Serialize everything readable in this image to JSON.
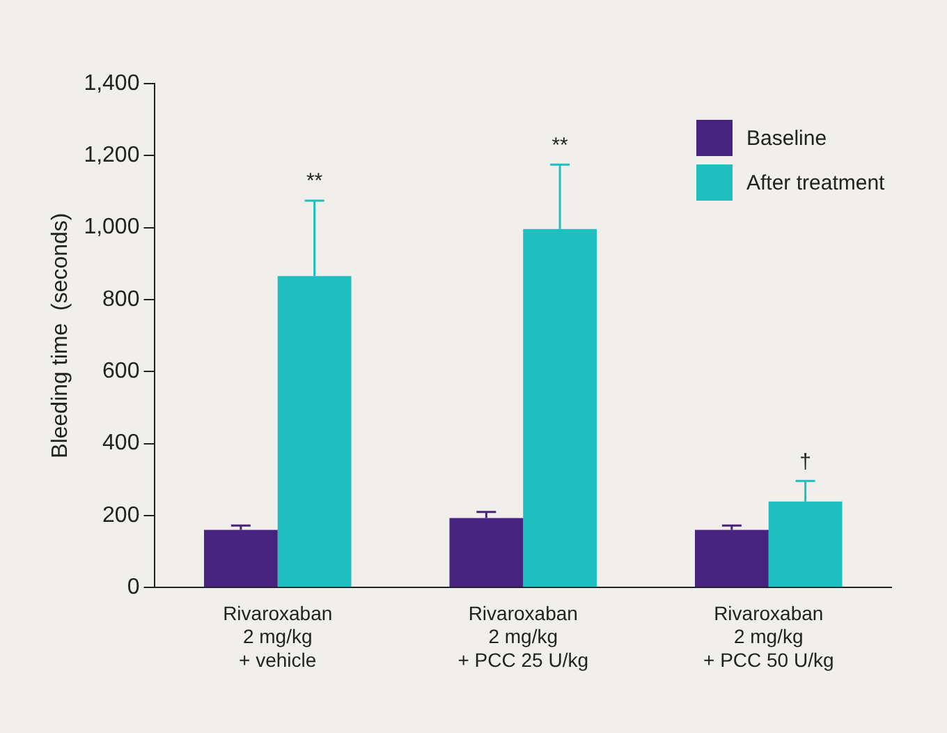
{
  "chart_data": {
    "type": "bar",
    "ylabel": "Bleeding time  (seconds)",
    "categories": [
      "Rivaroxaban\n2 mg/kg\n+ vehicle",
      "Rivaroxaban\n2 mg/kg\n+ PCC 25 U/kg",
      "Rivaroxaban\n2 mg/kg\n+ PCC 50 U/kg"
    ],
    "series": [
      {
        "name": "Baseline",
        "color": "#46237f",
        "values": [
          160,
          193,
          160
        ],
        "errors": [
          [
            160,
            172
          ],
          [
            193,
            210
          ],
          [
            160,
            172
          ]
        ]
      },
      {
        "name": "After treatment",
        "color": "#1fbfbf",
        "values": [
          865,
          996,
          239
        ],
        "errors": [
          [
            865,
            1075
          ],
          [
            996,
            1175
          ],
          [
            239,
            296
          ]
        ]
      }
    ],
    "ylim": [
      0,
      1400
    ],
    "yticks": [
      0,
      200,
      400,
      600,
      800,
      {
        "value": 1000,
        "label": "1,000"
      },
      {
        "value": 1200,
        "label": "1,200"
      },
      {
        "value": 1400,
        "label": "1,400"
      }
    ],
    "annotations": [
      "**",
      "**",
      "†"
    ],
    "grid": false,
    "legend": "top right"
  }
}
